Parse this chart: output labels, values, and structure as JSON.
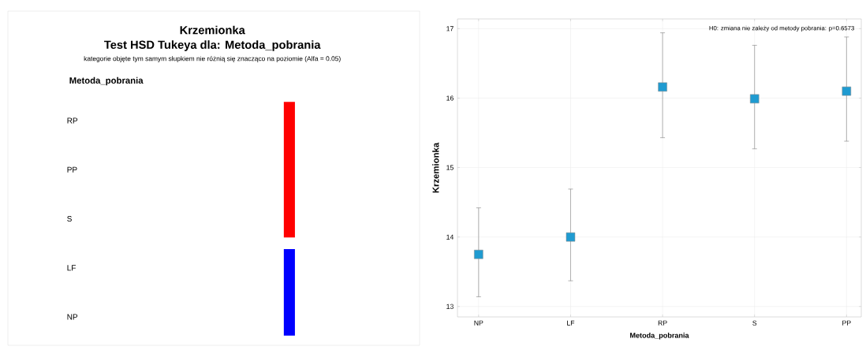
{
  "chart_data": [
    {
      "type": "other",
      "title": "Krzemionka",
      "subtitle": "Test HSD Tukeya dla:   Metoda_pobrania",
      "annotations": [
        "kategorie objęte tym samym słupkiem nie różnią się znacząco na poziomie (Alfa = 0.05)"
      ],
      "ylabel": "Metoda_pobrania",
      "categories": [
        "RP",
        "PP",
        "S",
        "LF",
        "NP"
      ]
    },
    {
      "type": "scatter",
      "xlabel": "Metoda_pobrania",
      "ylabel": "Krzemionka",
      "categories": [
        "NP",
        "LF",
        "RP",
        "S",
        "PP"
      ],
      "values": [
        13.75,
        14.0,
        16.16,
        15.99,
        16.1
      ],
      "errors": [
        [
          13.14,
          14.42
        ],
        [
          13.37,
          14.69
        ],
        [
          15.43,
          16.94
        ],
        [
          15.27,
          16.76
        ],
        [
          15.38,
          16.88
        ]
      ],
      "color": "#1f9bd1",
      "marker": "square",
      "ylim": [
        12.85,
        17.14
      ],
      "yticks": [
        13,
        14,
        15,
        16,
        17
      ],
      "grid": true,
      "annotations": [
        "H0: zmiana nie zależy od metody pobrania:  p=0.6573"
      ]
    }
  ]
}
